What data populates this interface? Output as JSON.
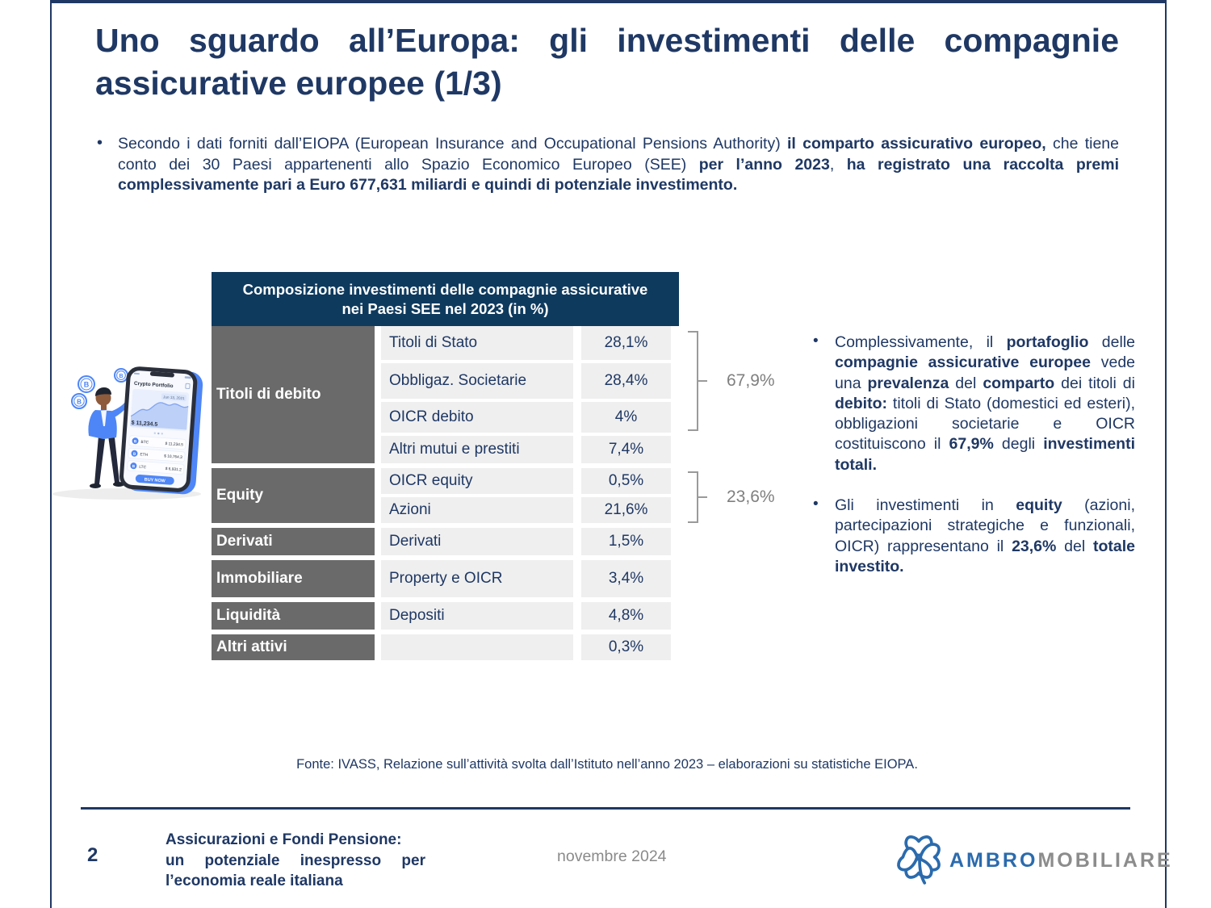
{
  "slide": {
    "title_line1": "Uno sguardo all’Europa: gli investimenti delle compagnie",
    "title_line2": "assicurative europee (1/3)",
    "bullet_glyph": "•"
  },
  "intro": {
    "segments": [
      {
        "t": "Secondo i dati forniti dall’EIOPA (European Insurance and Occupational Pensions Authority) ",
        "b": false
      },
      {
        "t": "il comparto assicurativo europeo,",
        "b": true
      },
      {
        "t": " che tiene conto dei 30 Paesi appartenenti allo Spazio Economico Europeo (SEE) ",
        "b": false
      },
      {
        "t": "per l’anno 2023",
        "b": true
      },
      {
        "t": ", ",
        "b": false
      },
      {
        "t": "ha registrato una raccolta premi complessivamente pari a Euro 677,631  miliardi e quindi di potenziale investimento.",
        "b": true
      }
    ]
  },
  "table": {
    "header_line1": "Composizione investimenti delle compagnie assicurative",
    "header_line2": "nei Paesi SEE nel 2023 (in %)",
    "groups": [
      {
        "category": "Titoli di debito",
        "rows": [
          {
            "label": "Titoli di Stato",
            "value": "28,1%"
          },
          {
            "label": "Obbligaz. Societarie",
            "value": "28,4%"
          },
          {
            "label": "OICR debito",
            "value": "4%"
          },
          {
            "label": "Altri mutui e prestiti",
            "value": "7,4%"
          }
        ]
      },
      {
        "category": "Equity",
        "rows": [
          {
            "label": "OICR equity",
            "value": "0,5%"
          },
          {
            "label": "Azioni",
            "value": "21,6%"
          }
        ]
      },
      {
        "category": "Derivati",
        "rows": [
          {
            "label": "Derivati",
            "value": "1,5%"
          }
        ]
      },
      {
        "category": "Immobiliare",
        "rows": [
          {
            "label": "Property e OICR",
            "value": "3,4%"
          }
        ]
      },
      {
        "category": "Liquidità",
        "rows": [
          {
            "label": "Depositi",
            "value": "4,8%"
          }
        ]
      },
      {
        "category": "Altri attivi",
        "rows": [
          {
            "label": "",
            "value": "0,3%"
          }
        ]
      }
    ]
  },
  "brackets": {
    "debt_total": "67,9%",
    "equity_total": "23,6%"
  },
  "notes": {
    "note1_segments": [
      {
        "t": "Complessivamente, il ",
        "b": false
      },
      {
        "t": "portafoglio",
        "b": true
      },
      {
        "t": " delle ",
        "b": false
      },
      {
        "t": "compagnie assicurative europee",
        "b": true
      },
      {
        "t": " vede una ",
        "b": false
      },
      {
        "t": "prevalenza",
        "b": true
      },
      {
        "t": " del ",
        "b": false
      },
      {
        "t": "comparto",
        "b": true
      },
      {
        "t": " dei titoli di ",
        "b": false
      },
      {
        "t": "debito:",
        "b": true
      },
      {
        "t": " titoli di Stato (domestici ed esteri), obbligazioni societarie e OICR costituiscono il ",
        "b": false
      },
      {
        "t": "67,9%",
        "b": true
      },
      {
        "t": " degli ",
        "b": false
      },
      {
        "t": "investimenti totali.",
        "b": true
      }
    ],
    "note2_segments": [
      {
        "t": "Gli investimenti in ",
        "b": false
      },
      {
        "t": "equity",
        "b": true
      },
      {
        "t": " (azioni, partecipazioni strategiche e funzionali, OICR) rappresentano il ",
        "b": false
      },
      {
        "t": "23,6%",
        "b": true
      },
      {
        "t": " del ",
        "b": false
      },
      {
        "t": "totale investito.",
        "b": true
      }
    ]
  },
  "fonte": "Fonte: IVASS, Relazione sull’attività svolta dall’Istituto nell’anno 2023 – elaborazioni su statistiche EIOPA.",
  "footer": {
    "page_number": "2",
    "title_line1": "Assicurazioni e Fondi Pensione:",
    "title_line2": "un potenziale inespresso per",
    "title_line3": "l’economia reale italiana",
    "date": "novembre 2024",
    "logo_part1": "AMBRO",
    "logo_part2": "MOBILIARE"
  },
  "colors": {
    "navy": "#1F3864",
    "table_header_bg": "#0E3A5E",
    "category_gray": "#6A6A6A",
    "cell_bg": "#EFEFEF",
    "bracket_gray": "#9A9A9A",
    "logo_blue": "#2B6BAD",
    "logo_gray": "#8C8C8C",
    "illustration_blue": "#4E86F7"
  },
  "illustration": {
    "phone": {
      "app_title": "Crypto Portfolio",
      "date": "Jun 13, 2021",
      "balance": "$ 11,234.5",
      "rows": [
        {
          "sym": "BTC",
          "val": "$ 11,234.5"
        },
        {
          "sym": "ETH",
          "val": "$ 10,764.3"
        },
        {
          "sym": "LTC",
          "val": "$ 6,931.2"
        }
      ],
      "button": "BUY NOW",
      "coin_letter": "B"
    }
  }
}
